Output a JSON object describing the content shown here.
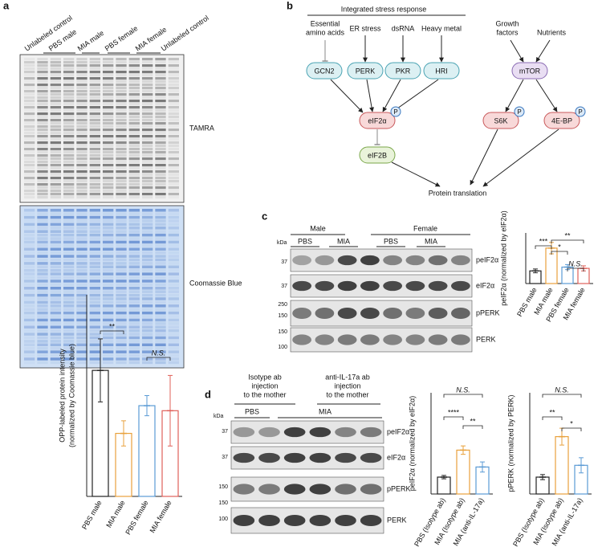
{
  "panel_labels": [
    "a",
    "b",
    "c",
    "d"
  ],
  "panel_a": {
    "lanes": [
      "Unlabeled control",
      "PBS male",
      "MIA male",
      "PBS female",
      "MIA female",
      "Unlabeled control"
    ],
    "gel_labels": [
      "TAMRA",
      "Coomassie Blue"
    ]
  },
  "panel_b": {
    "group_title": "Integrated stress response",
    "inputs": [
      [
        "Essential",
        "amino acids"
      ],
      [
        "ER stress"
      ],
      [
        "dsRNA"
      ],
      [
        "Heavy metal"
      ],
      [
        "Growth",
        "factors"
      ],
      [
        "Nutrients"
      ]
    ],
    "nodes": [
      "GCN2",
      "PERK",
      "PKR",
      "HRI",
      "mTOR",
      "eIF2α",
      "S6K",
      "4E-BP",
      "eIF2B"
    ],
    "phospho": [
      "P",
      "P",
      "P"
    ],
    "output": "Protein translation"
  },
  "panel_c": {
    "groups": [
      "Male",
      "Female"
    ],
    "conditions": [
      "PBS",
      "MIA",
      "PBS",
      "MIA"
    ],
    "kda": "kDa",
    "markers": [
      "37",
      "37",
      "250",
      "150",
      "150",
      "100"
    ],
    "bands": [
      "peIF2α",
      "eIF2α",
      "pPERK",
      "PERK"
    ]
  },
  "panel_d": {
    "headers": [
      [
        "Isotype ab",
        "injection",
        "to the mother"
      ],
      [
        "anti-IL-17a ab",
        "injection",
        "to the mother"
      ]
    ],
    "kda": "kDa",
    "conditions": [
      "PBS",
      "MIA"
    ],
    "markers": [
      "37",
      "37",
      "150",
      "150",
      "100"
    ],
    "bands": [
      "peIF2α",
      "eIF2α",
      "pPERK",
      "PERK"
    ]
  },
  "chart_data": [
    {
      "type": "bar",
      "ylabel": [
        "OPP-labeled protein intensity",
        "(normalized by Coomassie blue)"
      ],
      "categories": [
        "PBS male",
        "MIA male",
        "PBS female",
        "MIA female"
      ],
      "values": [
        1.0,
        0.5,
        0.72,
        0.68
      ],
      "errors": [
        0.25,
        0.1,
        0.08,
        0.28
      ],
      "colors": [
        "#222222",
        "#e8a13c",
        "#5b9bd5",
        "#e0605a"
      ],
      "ylim": [
        0,
        1.6
      ],
      "annotations": [
        "**",
        "N.S."
      ]
    },
    {
      "type": "bar",
      "ylabel": [
        "peIF2α (normalized by eIF2α)"
      ],
      "categories": [
        "PBS male",
        "MIA male",
        "PBS female",
        "MIA female"
      ],
      "values": [
        1.0,
        2.8,
        1.3,
        1.2
      ],
      "errors": [
        0.15,
        0.45,
        0.2,
        0.2
      ],
      "colors": [
        "#222222",
        "#e8a13c",
        "#5b9bd5",
        "#e0605a"
      ],
      "ylim": [
        0,
        4
      ],
      "annotations": [
        "***",
        "**",
        "*",
        "N.S."
      ]
    },
    {
      "type": "bar",
      "ylabel": [
        "peIF2α (normalized by eIF2α)"
      ],
      "categories": [
        "PBS (Isotype ab)",
        "MIA (Isotype ab)",
        "MIA (anti-IL-17a)"
      ],
      "values": [
        1.0,
        2.6,
        1.6
      ],
      "errors": [
        0.1,
        0.25,
        0.3
      ],
      "colors": [
        "#222222",
        "#e8a13c",
        "#5b9bd5"
      ],
      "ylim": [
        0,
        6
      ],
      "annotations": [
        "N.S.",
        "****",
        "**"
      ]
    },
    {
      "type": "bar",
      "ylabel": [
        "pPERK (normalized by PERK)"
      ],
      "categories": [
        "PBS (Isotype ab)",
        "MIA (Isotype ab)",
        "MIA (anti-IL-17a)"
      ],
      "values": [
        1.0,
        3.4,
        1.7
      ],
      "errors": [
        0.15,
        0.5,
        0.45
      ],
      "colors": [
        "#222222",
        "#e8a13c",
        "#5b9bd5"
      ],
      "ylim": [
        0,
        6
      ],
      "annotations": [
        "N.S.",
        "**",
        "*"
      ]
    }
  ]
}
